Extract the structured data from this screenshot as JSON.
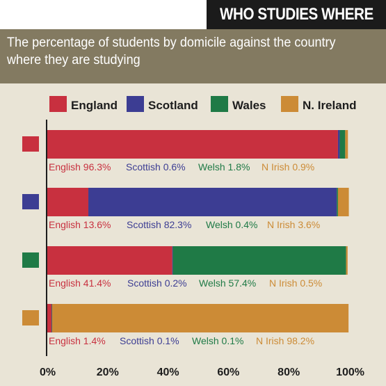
{
  "header": {
    "title": "WHO STUDIES WHERE",
    "subtitle_line1": "The percentage of students by domicile against the country",
    "subtitle_line2": "where they are studying"
  },
  "colors": {
    "England": "#c8303f",
    "Scotland": "#3c3d93",
    "Wales": "#1f7a46",
    "N. Ireland": "#cc8b36"
  },
  "chart_data": {
    "type": "bar",
    "orientation": "horizontal",
    "stacked": true,
    "legend": [
      "England",
      "Scotland",
      "Wales",
      "N. Ireland"
    ],
    "legend_position": "top",
    "xlim": [
      0,
      100
    ],
    "x_ticks": [
      "0%",
      "20%",
      "40%",
      "60%",
      "80%",
      "100%"
    ],
    "rows": [
      {
        "country_color": "England",
        "segments": [
          {
            "series": "England",
            "value": 96.3
          },
          {
            "series": "Scotland",
            "value": 0.6
          },
          {
            "series": "Wales",
            "value": 1.8
          },
          {
            "series": "N. Ireland",
            "value": 0.9
          }
        ],
        "labels": [
          "English 96.3%",
          "Scottish 0.6%",
          "Welsh 1.8%",
          "N Irish 0.9%"
        ]
      },
      {
        "country_color": "Scotland",
        "segments": [
          {
            "series": "England",
            "value": 13.6
          },
          {
            "series": "Scotland",
            "value": 82.3
          },
          {
            "series": "Wales",
            "value": 0.4
          },
          {
            "series": "N. Ireland",
            "value": 3.6
          }
        ],
        "labels": [
          "English 13.6%",
          "Scottish 82.3%",
          "Welsh 0.4%",
          "N Irish 3.6%"
        ]
      },
      {
        "country_color": "Wales",
        "segments": [
          {
            "series": "England",
            "value": 41.4
          },
          {
            "series": "Scotland",
            "value": 0.2
          },
          {
            "series": "Wales",
            "value": 57.4
          },
          {
            "series": "N. Ireland",
            "value": 0.5
          }
        ],
        "labels": [
          "English 41.4%",
          "Scottish 0.2%",
          "Welsh 57.4%",
          "N Irish 0.5%"
        ]
      },
      {
        "country_color": "N. Ireland",
        "segments": [
          {
            "series": "England",
            "value": 1.4
          },
          {
            "series": "Scotland",
            "value": 0.1
          },
          {
            "series": "Wales",
            "value": 0.1
          },
          {
            "series": "N. Ireland",
            "value": 98.2
          }
        ],
        "labels": [
          "English 1.4%",
          "Scottish 0.1%",
          "Welsh 0.1%",
          "N Irish 98.2%"
        ]
      }
    ]
  }
}
